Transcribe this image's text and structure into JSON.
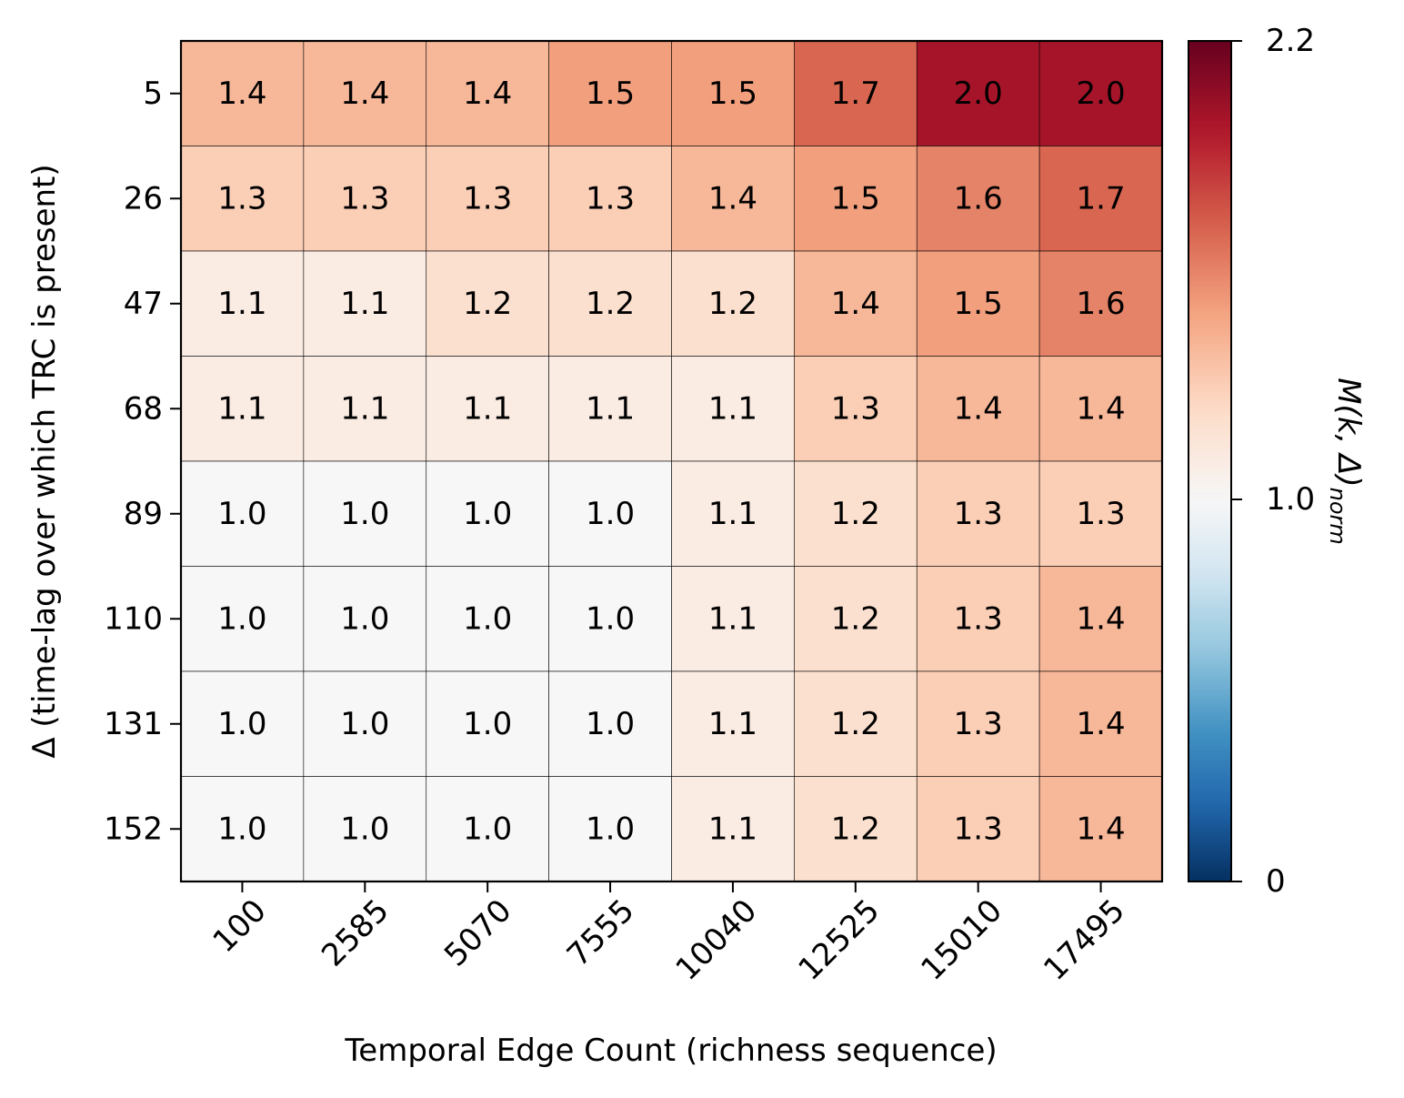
{
  "chart_data": {
    "type": "heatmap",
    "title": "",
    "xlabel": "Temporal Edge Count (richness sequence)",
    "ylabel": "Δ (time-lag over which TRC is present)",
    "x_categories": [
      "100",
      "2585",
      "5070",
      "7555",
      "10040",
      "12525",
      "15010",
      "17495"
    ],
    "y_categories": [
      "5",
      "26",
      "47",
      "68",
      "89",
      "110",
      "131",
      "152"
    ],
    "values": [
      [
        1.4,
        1.4,
        1.4,
        1.5,
        1.5,
        1.7,
        2.0,
        2.0
      ],
      [
        1.3,
        1.3,
        1.3,
        1.3,
        1.4,
        1.5,
        1.6,
        1.7
      ],
      [
        1.1,
        1.1,
        1.2,
        1.2,
        1.2,
        1.4,
        1.5,
        1.6
      ],
      [
        1.1,
        1.1,
        1.1,
        1.1,
        1.1,
        1.3,
        1.4,
        1.4
      ],
      [
        1.0,
        1.0,
        1.0,
        1.0,
        1.1,
        1.2,
        1.3,
        1.3
      ],
      [
        1.0,
        1.0,
        1.0,
        1.0,
        1.1,
        1.2,
        1.3,
        1.4
      ],
      [
        1.0,
        1.0,
        1.0,
        1.0,
        1.1,
        1.2,
        1.3,
        1.4
      ],
      [
        1.0,
        1.0,
        1.0,
        1.0,
        1.1,
        1.2,
        1.3,
        1.4
      ]
    ],
    "colormap": "RdBu_r",
    "colorbar": {
      "label": "M(k, Δ)norm",
      "label_main": "M(k, Δ)",
      "label_sub": "norm",
      "range": [
        0,
        2.2
      ],
      "center": 1.0,
      "ticks": [
        "0",
        "1.0",
        "2.2"
      ]
    }
  }
}
